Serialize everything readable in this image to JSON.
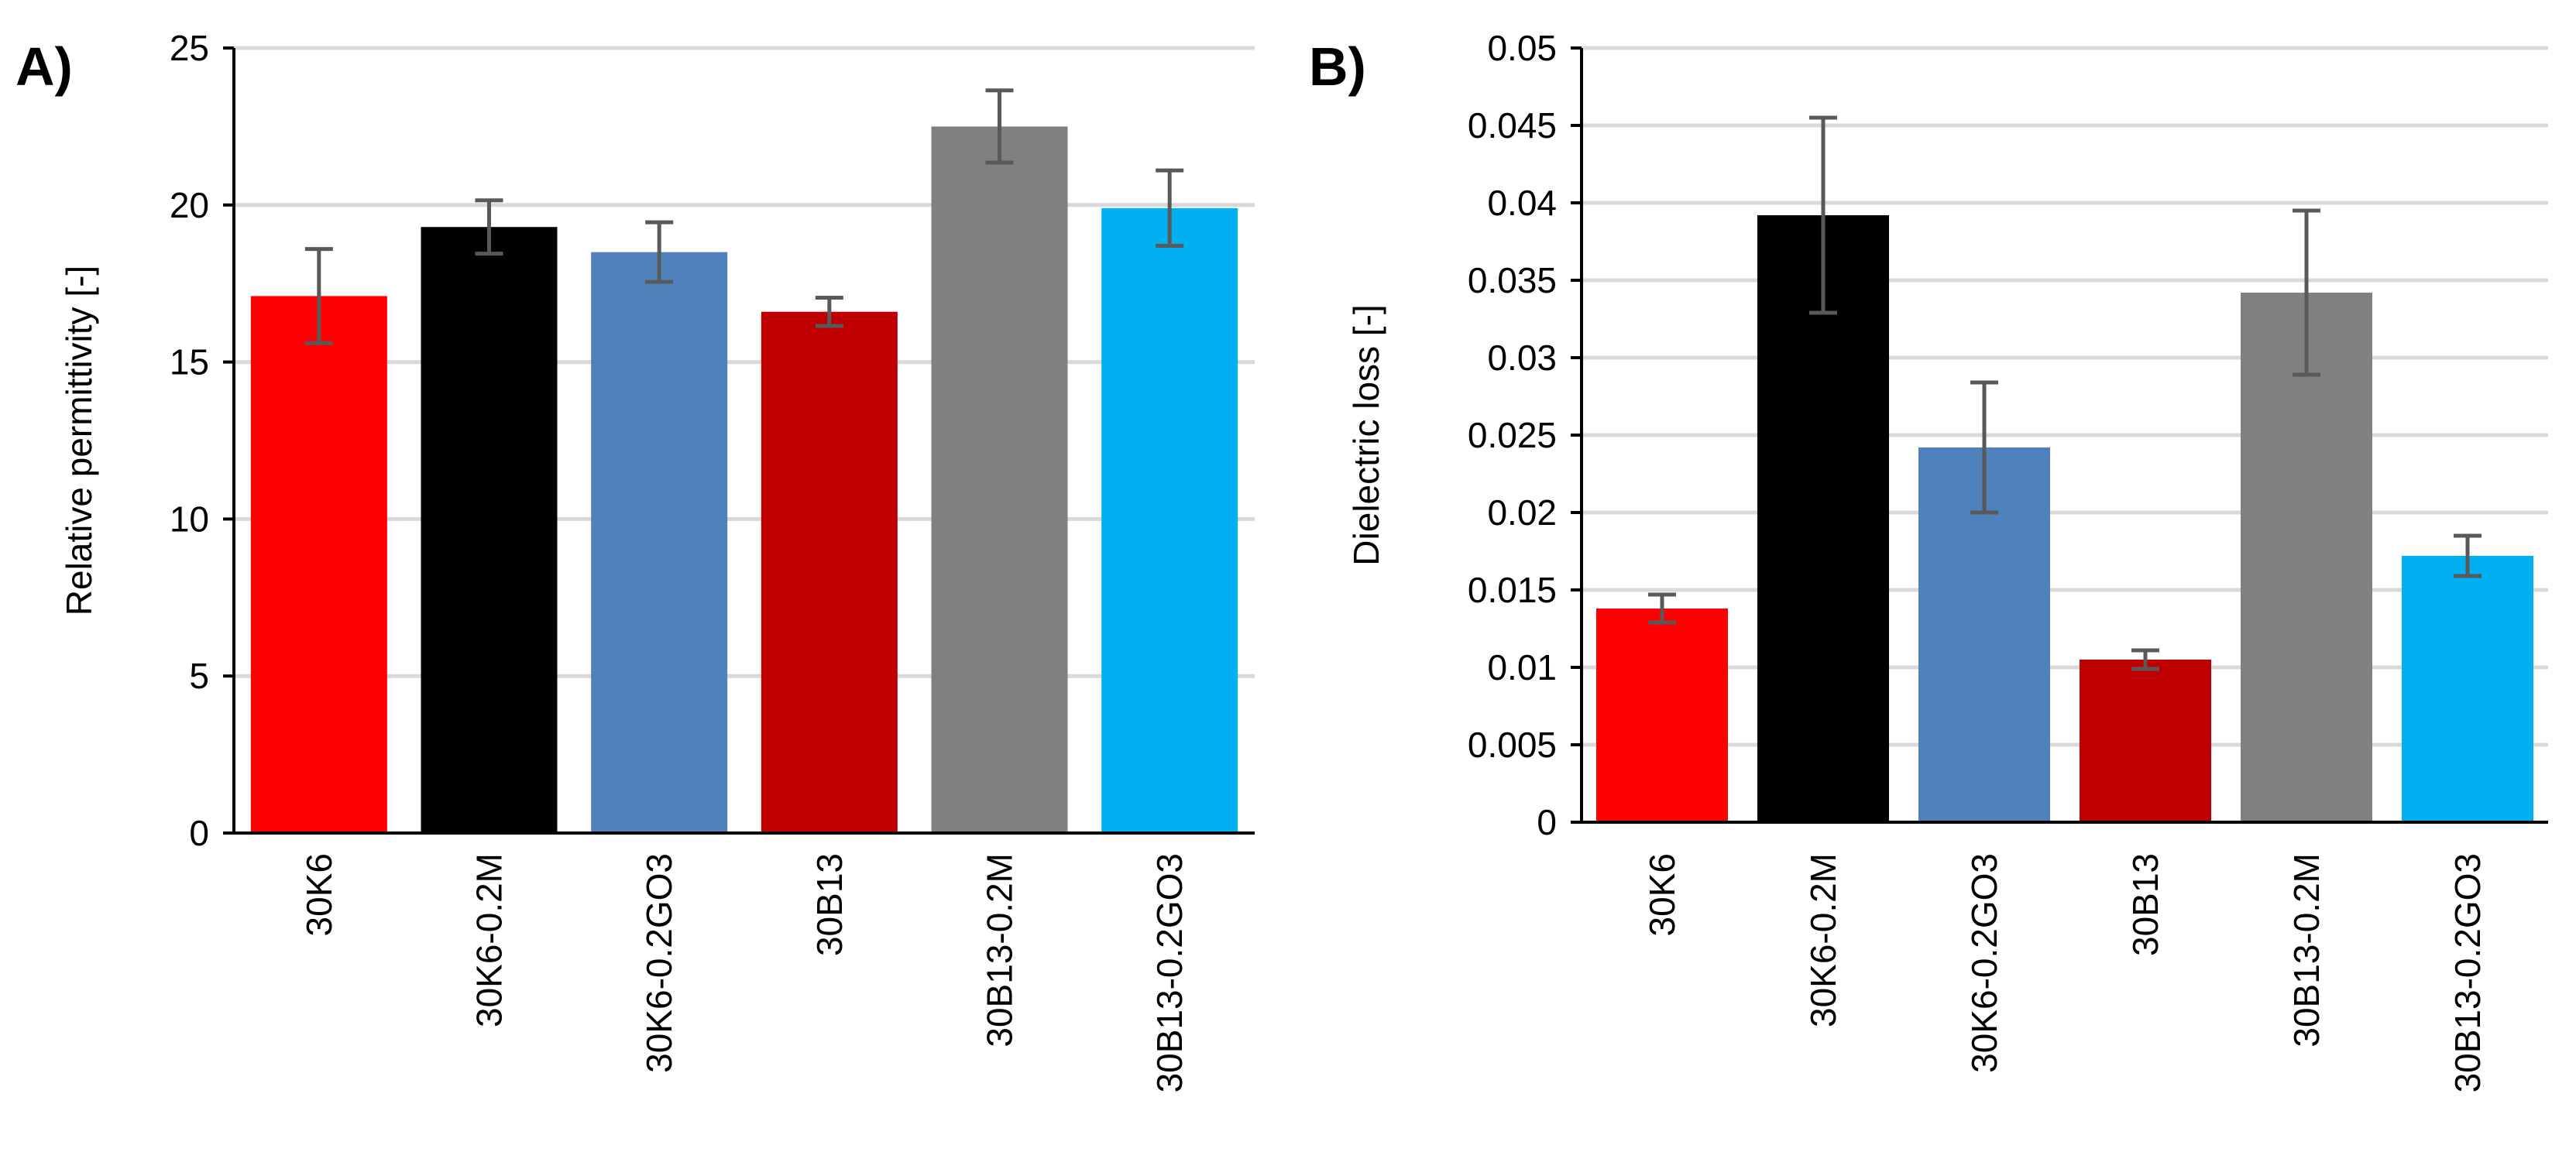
{
  "chart_data": [
    {
      "type": "bar",
      "panel_label": "A)",
      "title": "",
      "xlabel": "",
      "ylabel": "Relative permittivity [-]",
      "ylim": [
        0,
        25
      ],
      "yticks": [
        0,
        5,
        10,
        15,
        20,
        25
      ],
      "ytick_labels": [
        "0",
        "5",
        "10",
        "15",
        "20",
        "25"
      ],
      "grid": "horizontal",
      "legend": "none",
      "categories": [
        "30K6",
        "30K6-0.2M",
        "30K6-0.2GO3",
        "30B13",
        "30B13-0.2M",
        "30B13-0.2GO3"
      ],
      "values": [
        17.1,
        19.3,
        18.5,
        16.6,
        22.5,
        19.9
      ],
      "errors": [
        1.5,
        0.85,
        0.95,
        0.45,
        1.15,
        1.2
      ],
      "colors": [
        "#ff0000",
        "#000000",
        "#4f81bd",
        "#c00000",
        "#808080",
        "#00b0f0"
      ],
      "error_bar_color": "#595959",
      "gridline_color": "#d9d9d9"
    },
    {
      "type": "bar",
      "panel_label": "B)",
      "title": "",
      "xlabel": "",
      "ylabel": "Dielectric loss [-]",
      "ylim": [
        0,
        0.05
      ],
      "yticks": [
        0,
        0.005,
        0.01,
        0.015,
        0.02,
        0.025,
        0.03,
        0.035,
        0.04,
        0.045,
        0.05
      ],
      "ytick_labels": [
        "0",
        "0.005",
        "0.01",
        "0.015",
        "0.02",
        "0.025",
        "0.03",
        "0.035",
        "0.04",
        "0.045",
        "0.05"
      ],
      "grid": "horizontal",
      "legend": "none",
      "categories": [
        "30K6",
        "30K6-0.2M",
        "30K6-0.2GO3",
        "30B13",
        "30B13-0.2M",
        "30B13-0.2GO3"
      ],
      "values": [
        0.0138,
        0.0392,
        0.0242,
        0.0105,
        0.0342,
        0.0172
      ],
      "errors": [
        0.0009,
        0.0063,
        0.0042,
        0.0006,
        0.0053,
        0.0013
      ],
      "colors": [
        "#ff0000",
        "#000000",
        "#4f81bd",
        "#c00000",
        "#808080",
        "#00b0f0"
      ],
      "error_bar_color": "#595959",
      "gridline_color": "#d9d9d9"
    }
  ]
}
